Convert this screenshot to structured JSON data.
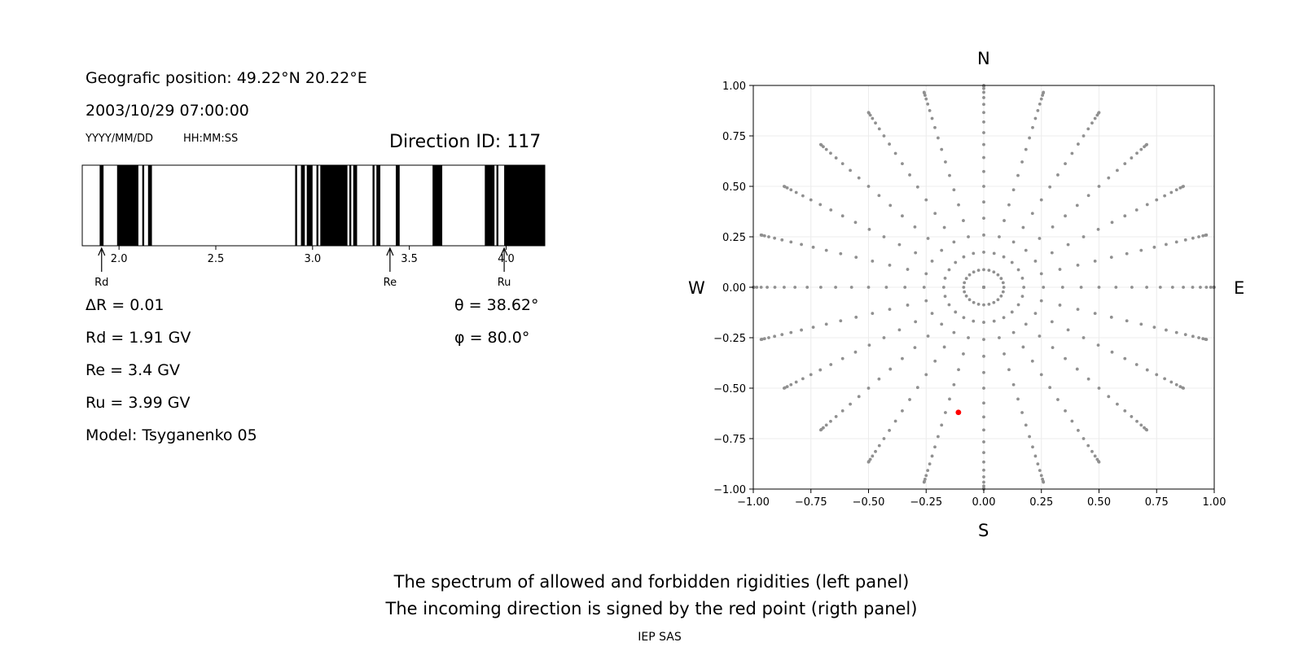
{
  "left_panel": {
    "position_text": "Geografic position: 49.22°N 20.22°E",
    "datetime": "2003/10/29 07:00:00",
    "date_format": "YYYY/MM/DD",
    "time_format": "HH:MM:SS",
    "direction_id": "Direction ID: 117",
    "delta_r": "ΔR = 0.01",
    "rd_text": "Rd = 1.91 GV",
    "re_text": "Re = 3.4 GV",
    "ru_text": "Ru = 3.99 GV",
    "model": "Model: Tsyganenko 05",
    "theta": "θ = 38.62°",
    "phi": "φ = 80.0°"
  },
  "right_panel": {
    "north": "N",
    "south": "S",
    "west": "W",
    "east": "E"
  },
  "caption": {
    "line1": "The spectrum of allowed and forbidden rigidities (left panel)",
    "line2": "The incoming direction is signed by the red point (rigth panel)",
    "credit": "IEP SAS"
  },
  "chart_data": [
    {
      "type": "bar",
      "description_kind": "rigidity spectrum",
      "xlim": [
        1.81,
        4.2
      ],
      "xticks": [
        2.0,
        2.5,
        3.0,
        3.5,
        4.0
      ],
      "tick_labels": [
        "2.0",
        "2.5",
        "3.0",
        "3.5",
        "4.0"
      ],
      "forbidden_bands": [
        [
          1.9,
          1.92
        ],
        [
          1.99,
          2.1
        ],
        [
          2.12,
          2.13
        ],
        [
          2.15,
          2.17
        ],
        [
          2.91,
          2.92
        ],
        [
          2.94,
          2.96
        ],
        [
          2.97,
          3.0
        ],
        [
          3.02,
          3.03
        ],
        [
          3.04,
          3.18
        ],
        [
          3.19,
          3.2
        ],
        [
          3.21,
          3.23
        ],
        [
          3.31,
          3.32
        ],
        [
          3.33,
          3.35
        ],
        [
          3.43,
          3.45
        ],
        [
          3.62,
          3.67
        ],
        [
          3.89,
          3.94
        ],
        [
          3.95,
          3.96
        ],
        [
          3.99,
          4.2
        ]
      ],
      "markers": [
        {
          "label": "Rd",
          "value": 1.91
        },
        {
          "label": "Re",
          "value": 3.4
        },
        {
          "label": "Ru",
          "value": 3.99
        }
      ],
      "colors": {
        "forbidden": "#000000",
        "allowed": "#ffffff"
      }
    },
    {
      "type": "scatter",
      "xlim": [
        -1.0,
        1.0
      ],
      "ylim": [
        -1.0,
        1.0
      ],
      "xticks": [
        -1.0,
        -0.75,
        -0.5,
        -0.25,
        0.0,
        0.25,
        0.5,
        0.75,
        1.0
      ],
      "yticks": [
        -1.0,
        -0.75,
        -0.5,
        -0.25,
        0.0,
        0.25,
        0.5,
        0.75,
        1.0
      ],
      "xtick_labels": [
        "−1.00",
        "−0.75",
        "−0.50",
        "−0.25",
        "0.00",
        "0.25",
        "0.50",
        "0.75",
        "1.00"
      ],
      "ytick_labels": [
        "−1.00",
        "−0.75",
        "−0.50",
        "−0.25",
        "0.00",
        "0.25",
        "0.50",
        "0.75",
        "1.00"
      ],
      "grid": true,
      "direction_grid": {
        "zenith_angles_deg": [
          0,
          5,
          10,
          15,
          20,
          25,
          30,
          35,
          40,
          45,
          50,
          55,
          60,
          65,
          70,
          75,
          80,
          85,
          90
        ],
        "azimuths_deg": [
          0,
          15,
          30,
          45,
          60,
          75,
          90,
          105,
          120,
          135,
          150,
          165,
          180,
          195,
          210,
          225,
          240,
          255,
          270,
          285,
          300,
          315,
          330,
          345
        ],
        "point_value": "sin(zenith)",
        "color": "#909090"
      },
      "highlight_point": {
        "x": -0.11,
        "y": -0.62,
        "color": "#ff0000"
      }
    }
  ]
}
